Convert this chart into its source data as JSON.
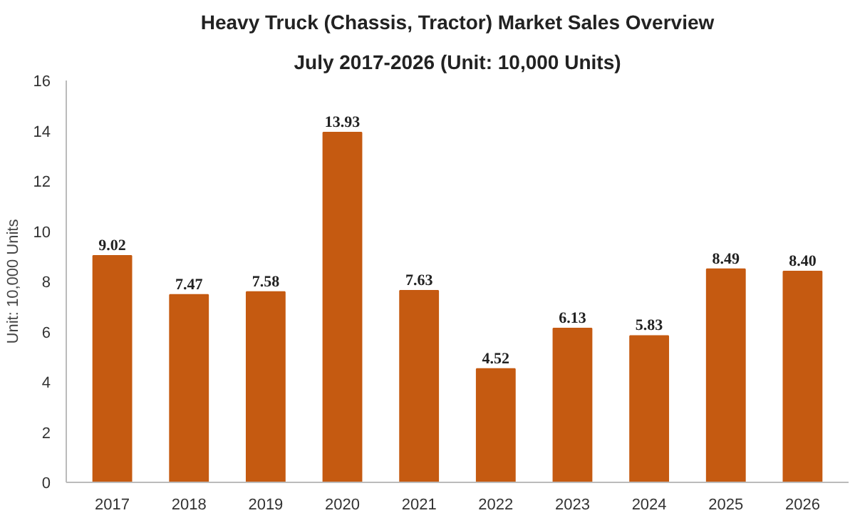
{
  "chart_data": {
    "type": "bar",
    "title": "Heavy Truck (Chassis, Tractor) Market Sales Overview",
    "subtitle": "July 2017-2026 (Unit: 10,000 Units)",
    "ylabel": "Unit: 10,000 Units",
    "categories": [
      "2017",
      "2018",
      "2019",
      "2020",
      "2021",
      "2022",
      "2023",
      "2024",
      "2025",
      "2026"
    ],
    "values": [
      9.02,
      7.47,
      7.58,
      13.93,
      7.63,
      4.52,
      6.13,
      5.83,
      8.49,
      8.4
    ],
    "value_labels": [
      "9.02",
      "7.47",
      "7.58",
      "13.93",
      "7.63",
      "4.52",
      "6.13",
      "5.83",
      "8.49",
      "8.40"
    ],
    "color": "#c55a11",
    "ylim": [
      0,
      16
    ],
    "yticks": [
      0,
      2,
      4,
      6,
      8,
      10,
      12,
      14,
      16
    ],
    "grid": false
  }
}
